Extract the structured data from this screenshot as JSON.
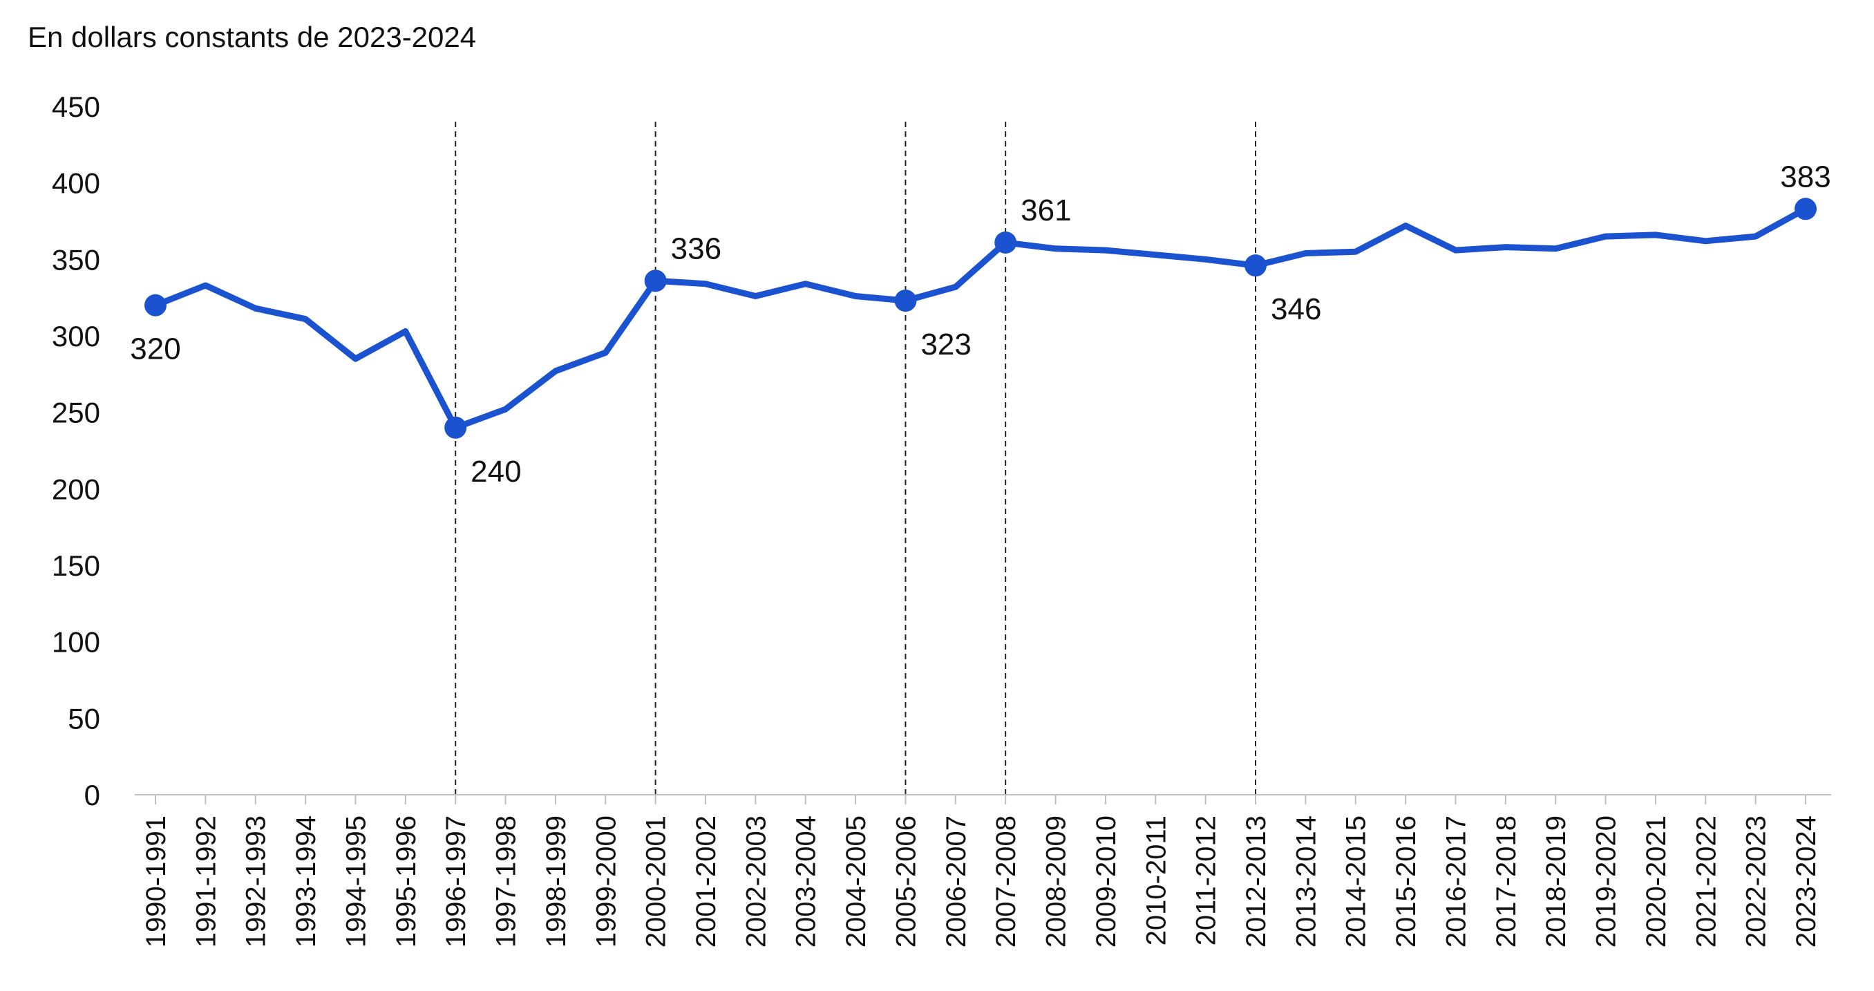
{
  "chart_data": {
    "type": "line",
    "unit_label": "En dollars constants de 2023-2024",
    "categories": [
      "1990-1991",
      "1991-1992",
      "1992-1993",
      "1993-1994",
      "1994-1995",
      "1995-1996",
      "1996-1997",
      "1997-1998",
      "1998-1999",
      "1999-2000",
      "2000-2001",
      "2001-2002",
      "2002-2003",
      "2003-2004",
      "2004-2005",
      "2005-2006",
      "2006-2007",
      "2007-2008",
      "2008-2009",
      "2009-2010",
      "2010-2011",
      "2011-2012",
      "2012-2013",
      "2013-2014",
      "2014-2015",
      "2015-2016",
      "2016-2017",
      "2017-2018",
      "2018-2019",
      "2019-2020",
      "2020-2021",
      "2021-2022",
      "2022-2023",
      "2023-2024"
    ],
    "series": [
      {
        "values": [
          320,
          333,
          318,
          311,
          285,
          303,
          240,
          252,
          277,
          289,
          336,
          334,
          326,
          334,
          326,
          323,
          332,
          361,
          357,
          356,
          353,
          350,
          346,
          354,
          355,
          372,
          356,
          358,
          357,
          365,
          366,
          362,
          365,
          383
        ],
        "color": "#1a52cf"
      }
    ],
    "ylim": [
      0,
      450
    ],
    "yticks": [
      0,
      50,
      100,
      150,
      200,
      250,
      300,
      350,
      400,
      450
    ],
    "grid": false,
    "legend": "none",
    "highlight_points": [
      {
        "category": "1990-1991",
        "value": 320,
        "label": "320",
        "label_position": "below"
      },
      {
        "category": "1996-1997",
        "value": 240,
        "label": "240",
        "label_position": "below-right"
      },
      {
        "category": "2000-2001",
        "value": 336,
        "label": "336",
        "label_position": "above-right"
      },
      {
        "category": "2005-2006",
        "value": 323,
        "label": "323",
        "label_position": "below-right"
      },
      {
        "category": "2007-2008",
        "value": 361,
        "label": "361",
        "label_position": "above-right"
      },
      {
        "category": "2012-2013",
        "value": 346,
        "label": "346",
        "label_position": "below-right"
      },
      {
        "category": "2023-2024",
        "value": 383,
        "label": "383",
        "label_position": "above"
      }
    ],
    "reference_lines": [
      "1996-1997",
      "2000-2001",
      "2005-2006",
      "2007-2008",
      "2012-2013"
    ]
  }
}
